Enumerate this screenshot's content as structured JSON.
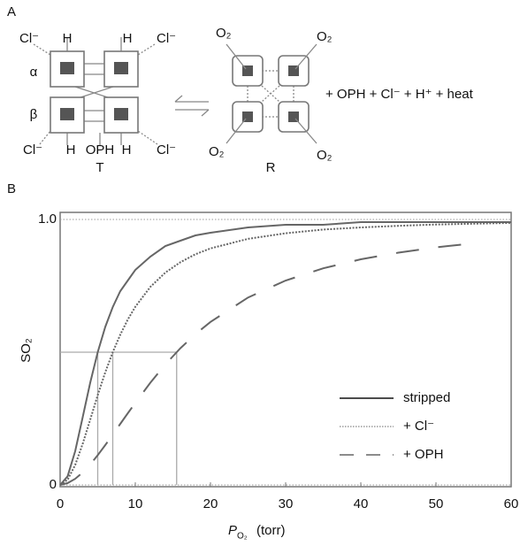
{
  "panel_a": {
    "label": "A",
    "t_state": {
      "cl": [
        "Cl⁻",
        "Cl⁻",
        "Cl⁻",
        "Cl⁻"
      ],
      "h": [
        "H",
        "H",
        "H",
        "H"
      ],
      "alpha": "α",
      "beta": "β",
      "oph": "OPH",
      "label": "T"
    },
    "r_state": {
      "o2": [
        "O₂",
        "O₂",
        "O₂",
        "O₂"
      ],
      "label": "R"
    },
    "products": "+ OPH + Cl⁻ + H⁺ + heat"
  },
  "chart_data": {
    "type": "line",
    "panel_label": "B",
    "x_label_symbol": "P",
    "x_label_subscript": "O₂",
    "x_label_unit": "(torr)",
    "y_label": "SO₂",
    "x": [
      0,
      1,
      2,
      3,
      4,
      5,
      6,
      7,
      8,
      9,
      10,
      12,
      14,
      16,
      18,
      20,
      25,
      30,
      35,
      40,
      45,
      50,
      55,
      60
    ],
    "series": [
      {
        "name": "stripped",
        "color": "#666666",
        "style": "solid",
        "values": [
          0,
          0.033,
          0.127,
          0.255,
          0.385,
          0.5,
          0.595,
          0.67,
          0.73,
          0.77,
          0.81,
          0.86,
          0.9,
          0.92,
          0.94,
          0.95,
          0.97,
          0.98,
          0.98,
          0.99,
          0.99,
          0.99,
          0.99,
          0.99
        ]
      },
      {
        "name": "+ Cl⁻",
        "color": "#666666",
        "style": "dotted",
        "values": [
          0,
          0.02,
          0.075,
          0.155,
          0.246,
          0.338,
          0.424,
          0.5,
          0.566,
          0.623,
          0.671,
          0.746,
          0.8,
          0.839,
          0.869,
          0.891,
          0.927,
          0.948,
          0.962,
          0.97,
          0.976,
          0.981,
          0.984,
          0.987
        ]
      },
      {
        "name": "+ OPH",
        "color": "#666666",
        "style": "dashed",
        "values": [
          0,
          0.007,
          0.023,
          0.047,
          0.077,
          0.112,
          0.15,
          0.189,
          0.23,
          0.27,
          0.309,
          0.385,
          0.454,
          0.515,
          0.568,
          0.614,
          0.706,
          0.77,
          0.816,
          0.85,
          0.875,
          0.895,
          0.91,
          null
        ]
      }
    ],
    "half_saturation": {
      "y": 0.5,
      "x": [
        5,
        7,
        15.5
      ]
    },
    "xlim": [
      0,
      60
    ],
    "xticks": [
      0,
      10,
      20,
      30,
      40,
      50,
      60
    ],
    "ylim": [
      0,
      1
    ],
    "yticks": [
      0,
      {
        "value": 1,
        "label": "1.0"
      }
    ],
    "grid": true
  }
}
